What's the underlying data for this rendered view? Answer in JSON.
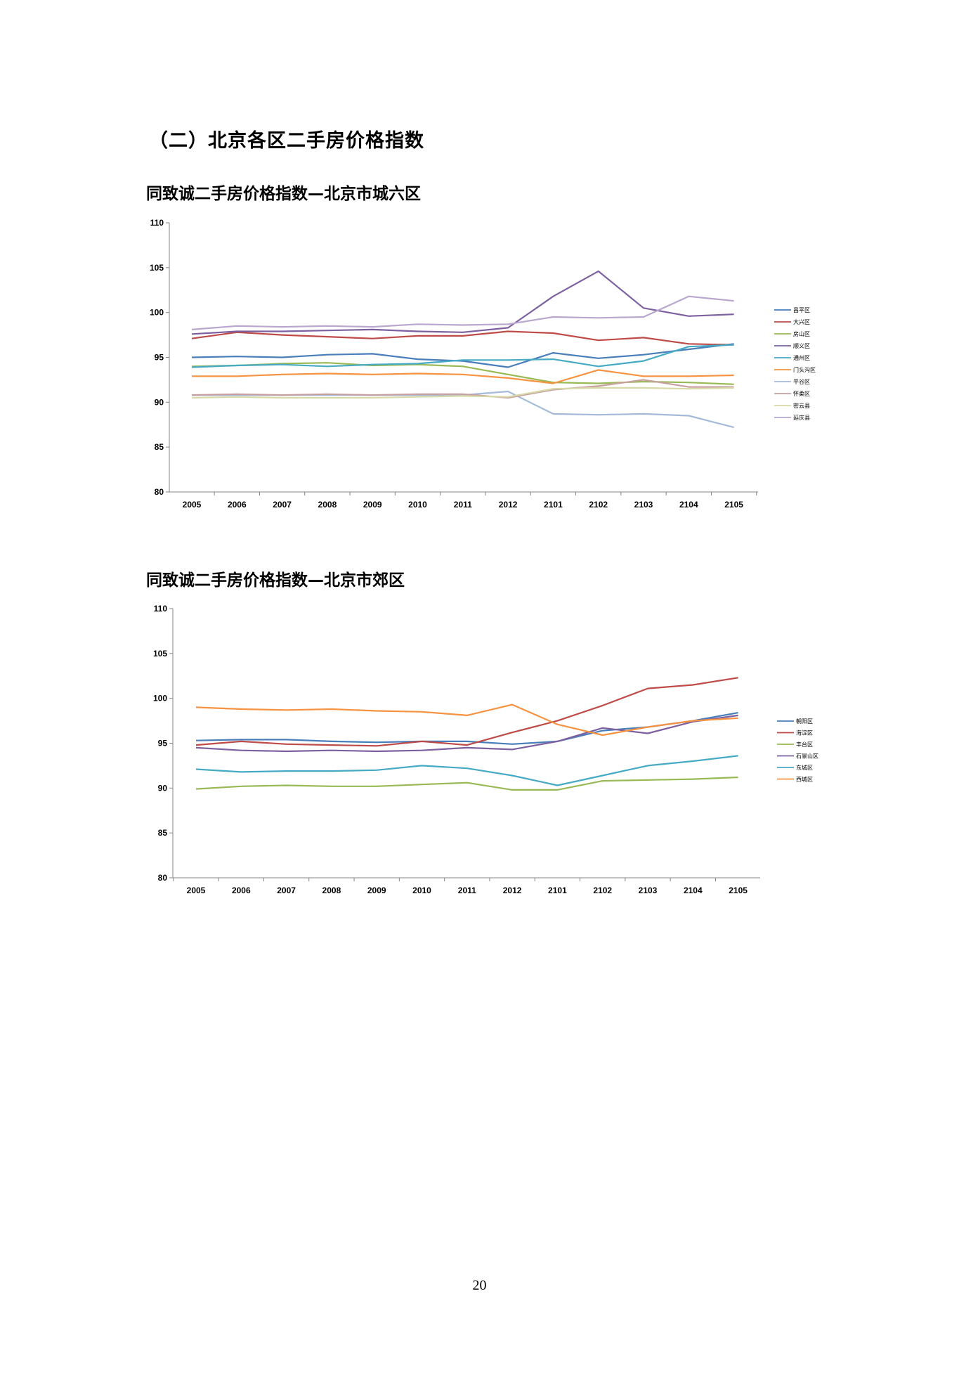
{
  "section_title": "（二）北京各区二手房价格指数",
  "page_number": "20",
  "chart_data": [
    {
      "type": "line",
      "title": "同致诚二手房价格指数—北京市城六区",
      "categories": [
        "2005",
        "2006",
        "2007",
        "2008",
        "2009",
        "2010",
        "2011",
        "2012",
        "2101",
        "2102",
        "2103",
        "2104",
        "2105"
      ],
      "ylim": [
        80,
        110
      ],
      "yticks": [
        80,
        85,
        90,
        95,
        100,
        105,
        110
      ],
      "grid": false,
      "legend": "right",
      "series": [
        {
          "name": "昌平区",
          "color": "#4a7ebb",
          "values": [
            95.0,
            95.1,
            95.0,
            95.3,
            95.4,
            94.8,
            94.6,
            93.9,
            95.5,
            94.9,
            95.3,
            95.9,
            96.5
          ]
        },
        {
          "name": "大兴区",
          "color": "#be4b48",
          "values": [
            97.1,
            97.8,
            97.5,
            97.3,
            97.1,
            97.4,
            97.4,
            97.9,
            97.7,
            96.9,
            97.2,
            96.5,
            96.4
          ]
        },
        {
          "name": "房山区",
          "color": "#98b954",
          "values": [
            94.0,
            94.1,
            94.3,
            94.4,
            94.1,
            94.2,
            94.0,
            93.1,
            92.2,
            92.1,
            92.3,
            92.2,
            92.0
          ]
        },
        {
          "name": "顺义区",
          "color": "#7d60a0",
          "values": [
            97.6,
            97.9,
            97.9,
            98.0,
            98.1,
            97.9,
            97.8,
            98.3,
            101.8,
            104.6,
            100.5,
            99.6,
            99.8
          ]
        },
        {
          "name": "通州区",
          "color": "#46aac5",
          "values": [
            93.9,
            94.1,
            94.2,
            94.0,
            94.2,
            94.3,
            94.7,
            94.7,
            94.8,
            94.0,
            94.6,
            96.2,
            96.4
          ]
        },
        {
          "name": "门头沟区",
          "color": "#f69240",
          "values": [
            92.9,
            92.9,
            93.1,
            93.2,
            93.1,
            93.2,
            93.1,
            92.7,
            92.1,
            93.6,
            92.9,
            92.9,
            93.0
          ]
        },
        {
          "name": "平谷区",
          "color": "#a5bad9",
          "values": [
            90.8,
            90.8,
            90.8,
            90.8,
            90.8,
            90.8,
            90.8,
            91.2,
            88.7,
            88.6,
            88.7,
            88.5,
            87.2
          ]
        },
        {
          "name": "怀柔区",
          "color": "#c8a0a0",
          "values": [
            90.8,
            90.9,
            90.8,
            90.9,
            90.8,
            90.9,
            90.9,
            90.5,
            91.4,
            91.8,
            92.5,
            91.7,
            91.7
          ]
        },
        {
          "name": "密云县",
          "color": "#d8d9a8",
          "values": [
            90.5,
            90.6,
            90.5,
            90.5,
            90.5,
            90.6,
            90.7,
            90.6,
            91.5,
            91.6,
            91.6,
            91.5,
            91.6
          ]
        },
        {
          "name": "延庆县",
          "color": "#b9a7cf",
          "values": [
            98.1,
            98.5,
            98.4,
            98.5,
            98.4,
            98.7,
            98.6,
            98.7,
            99.5,
            99.4,
            99.5,
            101.8,
            101.3
          ]
        }
      ]
    },
    {
      "type": "line",
      "title": "同致诚二手房价格指数—北京市郊区",
      "categories": [
        "2005",
        "2006",
        "2007",
        "2008",
        "2009",
        "2010",
        "2011",
        "2012",
        "2101",
        "2102",
        "2103",
        "2104",
        "2105"
      ],
      "ylim": [
        80,
        110
      ],
      "yticks": [
        80,
        85,
        90,
        95,
        100,
        105,
        110
      ],
      "grid": false,
      "legend": "right",
      "series": [
        {
          "name": "朝阳区",
          "color": "#4a7ebb",
          "values": [
            95.3,
            95.4,
            95.4,
            95.2,
            95.1,
            95.2,
            95.2,
            94.9,
            95.2,
            96.4,
            96.8,
            97.5,
            98.4
          ]
        },
        {
          "name": "海淀区",
          "color": "#be4b48",
          "values": [
            94.8,
            95.2,
            94.9,
            94.8,
            94.7,
            95.2,
            94.8,
            96.2,
            97.5,
            99.2,
            101.1,
            101.5,
            102.3
          ]
        },
        {
          "name": "丰台区",
          "color": "#98b954",
          "values": [
            89.9,
            90.2,
            90.3,
            90.2,
            90.2,
            90.4,
            90.6,
            89.8,
            89.8,
            90.8,
            90.9,
            91.0,
            91.2
          ]
        },
        {
          "name": "石景山区",
          "color": "#7d60a0",
          "values": [
            94.5,
            94.2,
            94.1,
            94.2,
            94.1,
            94.2,
            94.5,
            94.3,
            95.2,
            96.7,
            96.1,
            97.4,
            98.1
          ]
        },
        {
          "name": "东城区",
          "color": "#46aac5",
          "values": [
            92.1,
            91.8,
            91.9,
            91.9,
            92.0,
            92.5,
            92.2,
            91.4,
            90.3,
            91.4,
            92.5,
            93.0,
            93.6
          ]
        },
        {
          "name": "西城区",
          "color": "#f69240",
          "values": [
            99.0,
            98.8,
            98.7,
            98.8,
            98.6,
            98.5,
            98.1,
            99.3,
            97.1,
            95.9,
            96.8,
            97.5,
            97.8
          ]
        }
      ]
    }
  ]
}
